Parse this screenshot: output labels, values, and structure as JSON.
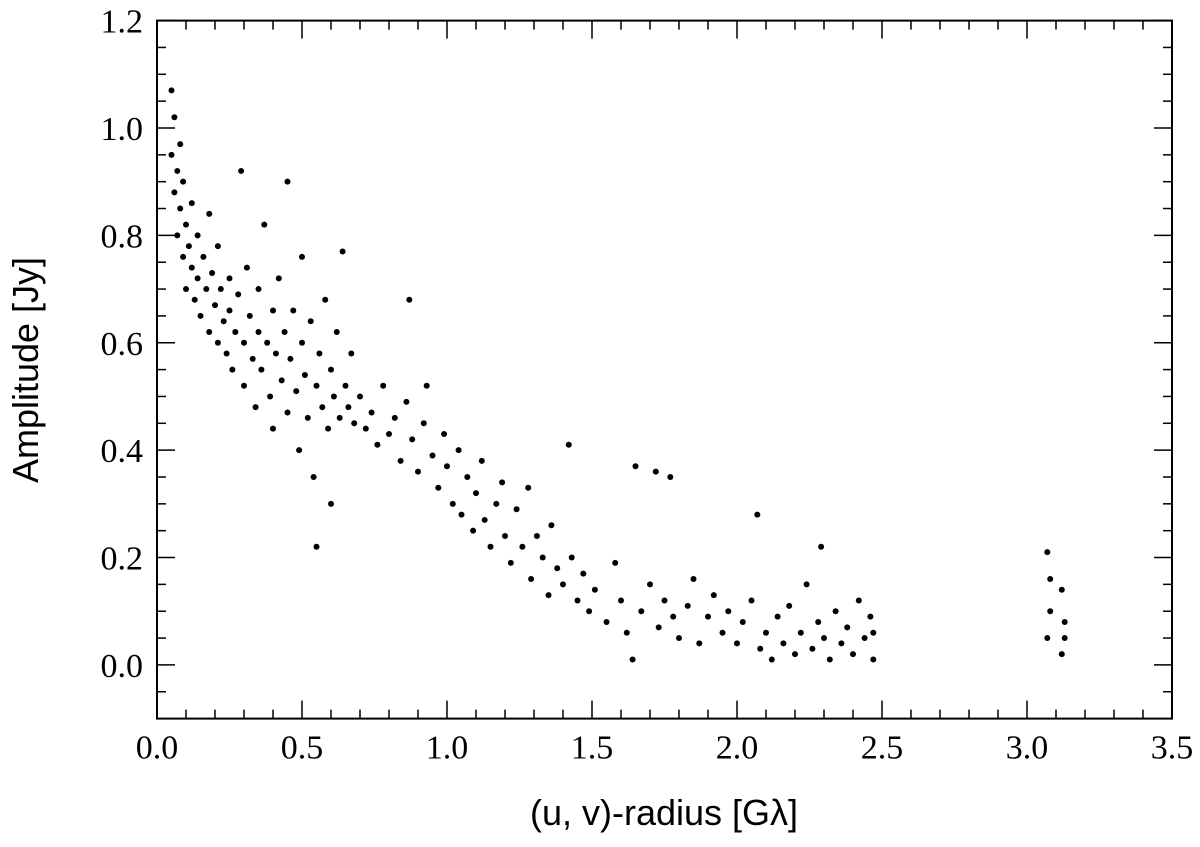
{
  "chart_data": {
    "type": "scatter",
    "xlabel": "(u, v)-radius [Gλ]",
    "ylabel": "Amplitude [Jy]",
    "color": "#000000",
    "xlim": [
      0,
      3.5
    ],
    "ylim": [
      -0.1,
      1.2
    ],
    "xticks": [
      {
        "value": 0,
        "label": "0.0"
      },
      0.5,
      {
        "value": 1,
        "label": "1.0"
      },
      1.5,
      {
        "value": 2,
        "label": "2.0"
      },
      2.5,
      {
        "value": 3,
        "label": "3.0"
      },
      3.5
    ],
    "yticks": [
      {
        "value": 0,
        "label": "0.0"
      },
      0.2,
      0.4,
      0.6,
      0.8,
      {
        "value": 1,
        "label": "1.0"
      },
      1.2
    ],
    "xminorticks": [
      0.1,
      0.2,
      0.3,
      0.4,
      0.6,
      0.7,
      0.8,
      0.9,
      1.1,
      1.2,
      1.3,
      1.4,
      1.6,
      1.7,
      1.8,
      1.9,
      2.1,
      2.2,
      2.3,
      2.4,
      2.6,
      2.7,
      2.8,
      2.9,
      3.1,
      3.2,
      3.3,
      3.4
    ],
    "yminorticks": [
      -0.05,
      0.05,
      0.1,
      0.15,
      0.25,
      0.3,
      0.35,
      0.45,
      0.5,
      0.55,
      0.65,
      0.7,
      0.75,
      0.85,
      0.9,
      0.95,
      1.05,
      1.1,
      1.15
    ],
    "x": [
      0.05,
      0.05,
      0.06,
      0.06,
      0.07,
      0.07,
      0.08,
      0.08,
      0.09,
      0.09,
      0.1,
      0.1,
      0.11,
      0.12,
      0.12,
      0.13,
      0.14,
      0.14,
      0.15,
      0.16,
      0.17,
      0.18,
      0.18,
      0.19,
      0.2,
      0.21,
      0.21,
      0.22,
      0.23,
      0.24,
      0.25,
      0.25,
      0.26,
      0.27,
      0.28,
      0.29,
      0.3,
      0.3,
      0.31,
      0.32,
      0.33,
      0.34,
      0.35,
      0.35,
      0.36,
      0.37,
      0.38,
      0.39,
      0.4,
      0.4,
      0.41,
      0.42,
      0.43,
      0.44,
      0.45,
      0.45,
      0.46,
      0.47,
      0.48,
      0.49,
      0.5,
      0.5,
      0.51,
      0.52,
      0.53,
      0.54,
      0.55,
      0.55,
      0.56,
      0.57,
      0.58,
      0.59,
      0.6,
      0.6,
      0.61,
      0.62,
      0.63,
      0.64,
      0.65,
      0.66,
      0.67,
      0.68,
      0.7,
      0.72,
      0.74,
      0.76,
      0.78,
      0.8,
      0.82,
      0.84,
      0.86,
      0.87,
      0.88,
      0.9,
      0.92,
      0.93,
      0.95,
      0.97,
      0.99,
      1.0,
      1.02,
      1.04,
      1.05,
      1.07,
      1.09,
      1.1,
      1.12,
      1.13,
      1.15,
      1.17,
      1.19,
      1.2,
      1.22,
      1.24,
      1.26,
      1.28,
      1.29,
      1.31,
      1.33,
      1.35,
      1.36,
      1.38,
      1.4,
      1.42,
      1.43,
      1.45,
      1.47,
      1.49,
      1.51,
      1.55,
      1.58,
      1.6,
      1.62,
      1.64,
      1.65,
      1.67,
      1.7,
      1.72,
      1.73,
      1.75,
      1.77,
      1.78,
      1.8,
      1.83,
      1.85,
      1.87,
      1.9,
      1.92,
      1.95,
      1.97,
      2.0,
      2.02,
      2.05,
      2.07,
      2.08,
      2.1,
      2.12,
      2.14,
      2.16,
      2.18,
      2.2,
      2.22,
      2.24,
      2.26,
      2.28,
      2.29,
      2.3,
      2.32,
      2.34,
      2.36,
      2.38,
      2.4,
      2.42,
      2.44,
      2.46,
      2.47,
      2.47,
      3.07,
      3.07,
      3.08,
      3.08,
      3.12,
      3.12,
      3.13,
      3.13
    ],
    "values": [
      1.07,
      0.95,
      1.02,
      0.88,
      0.92,
      0.8,
      0.97,
      0.85,
      0.76,
      0.9,
      0.7,
      0.82,
      0.78,
      0.74,
      0.86,
      0.68,
      0.8,
      0.72,
      0.65,
      0.76,
      0.7,
      0.62,
      0.84,
      0.73,
      0.67,
      0.6,
      0.78,
      0.7,
      0.64,
      0.58,
      0.72,
      0.66,
      0.55,
      0.62,
      0.69,
      0.92,
      0.6,
      0.52,
      0.74,
      0.65,
      0.57,
      0.48,
      0.62,
      0.7,
      0.55,
      0.82,
      0.6,
      0.5,
      0.66,
      0.44,
      0.58,
      0.72,
      0.53,
      0.62,
      0.9,
      0.47,
      0.57,
      0.66,
      0.51,
      0.4,
      0.6,
      0.76,
      0.54,
      0.46,
      0.64,
      0.35,
      0.22,
      0.52,
      0.58,
      0.48,
      0.68,
      0.44,
      0.55,
      0.3,
      0.5,
      0.62,
      0.46,
      0.77,
      0.52,
      0.48,
      0.58,
      0.45,
      0.5,
      0.44,
      0.47,
      0.41,
      0.52,
      0.43,
      0.46,
      0.38,
      0.49,
      0.68,
      0.42,
      0.36,
      0.45,
      0.52,
      0.39,
      0.33,
      0.43,
      0.37,
      0.3,
      0.4,
      0.28,
      0.35,
      0.25,
      0.32,
      0.38,
      0.27,
      0.22,
      0.3,
      0.34,
      0.24,
      0.19,
      0.29,
      0.22,
      0.33,
      0.16,
      0.24,
      0.2,
      0.13,
      0.26,
      0.18,
      0.15,
      0.41,
      0.2,
      0.12,
      0.17,
      0.1,
      0.14,
      0.08,
      0.19,
      0.12,
      0.06,
      0.01,
      0.37,
      0.1,
      0.15,
      0.36,
      0.07,
      0.12,
      0.35,
      0.09,
      0.05,
      0.11,
      0.16,
      0.04,
      0.09,
      0.13,
      0.06,
      0.1,
      0.04,
      0.08,
      0.12,
      0.28,
      0.03,
      0.06,
      0.01,
      0.09,
      0.04,
      0.11,
      0.02,
      0.06,
      0.15,
      0.03,
      0.08,
      0.22,
      0.05,
      0.01,
      0.1,
      0.04,
      0.07,
      0.02,
      0.12,
      0.05,
      0.09,
      0.01,
      0.06,
      0.21,
      0.05,
      0.16,
      0.1,
      0.14,
      0.02,
      0.08,
      0.05
    ]
  }
}
